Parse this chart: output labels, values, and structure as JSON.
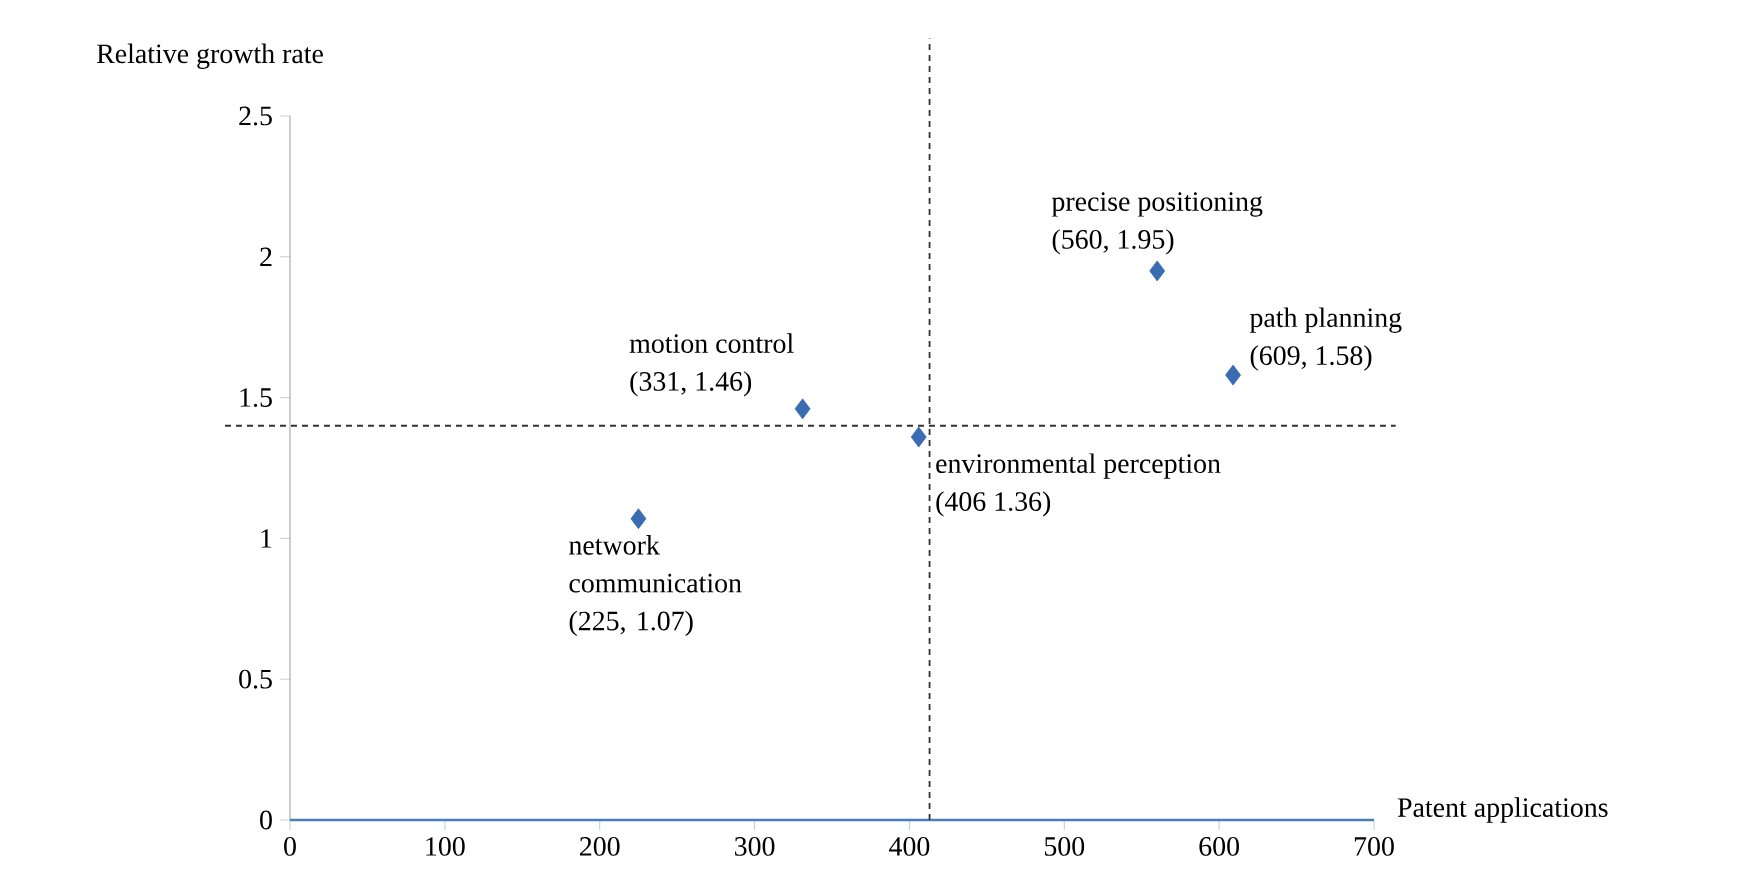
{
  "chart_data": {
    "type": "scatter",
    "xlabel": "Patent applications",
    "ylabel": "Relative growth rate",
    "xlim": [
      0,
      700
    ],
    "ylim": [
      0,
      2.5
    ],
    "xticks": [
      0,
      100,
      200,
      300,
      400,
      500,
      600,
      700
    ],
    "yticks": [
      0,
      0.5,
      1,
      1.5,
      2,
      2.5
    ],
    "marker": "diamond",
    "grid": false,
    "series": [
      {
        "name": "network communication",
        "color": "#3a6cb4",
        "x": [
          225
        ],
        "values": [
          1.07
        ],
        "value_labels": [
          "(225, 1.07)"
        ]
      },
      {
        "name": "motion control",
        "color": "#3a6cb4",
        "x": [
          331
        ],
        "values": [
          1.46
        ],
        "value_labels": [
          "(331, 1.46)"
        ]
      },
      {
        "name": "environmental perception",
        "color": "#3a6cb4",
        "x": [
          406
        ],
        "values": [
          1.36
        ],
        "value_labels": [
          "(406  1.36)"
        ]
      },
      {
        "name": "precise positioning",
        "color": "#3a6cb4",
        "x": [
          560
        ],
        "values": [
          1.95
        ],
        "value_labels": [
          "(560, 1.95)"
        ]
      },
      {
        "name": "path planning",
        "color": "#3a6cb4",
        "x": [
          609
        ],
        "values": [
          1.58
        ],
        "value_labels": [
          "(609, 1.58)"
        ]
      }
    ],
    "ref_lines": [
      {
        "axis": "x",
        "value": 413,
        "color": "#333333",
        "line_style": "dashed"
      },
      {
        "axis": "y",
        "value": 1.4,
        "color": "#333333",
        "line_style": "dashed"
      }
    ]
  }
}
